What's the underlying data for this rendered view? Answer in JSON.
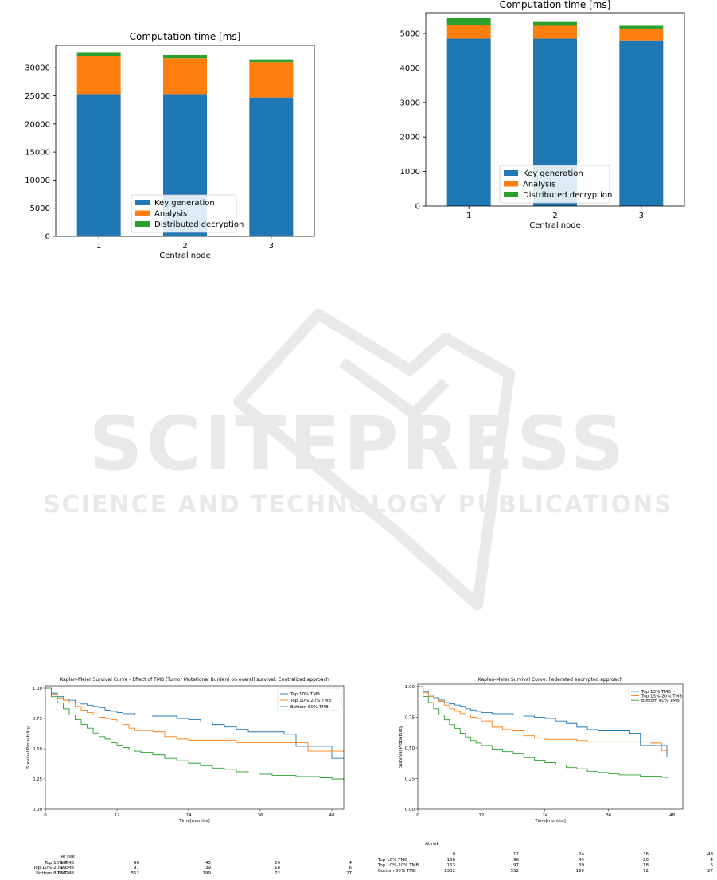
{
  "colors": {
    "key_generation": "#1f77b4",
    "analysis": "#ff7f0e",
    "distributed_decryption": "#2ca02c",
    "watermark": "#e9e9e9"
  },
  "watermark": {
    "line1": "SCITEPRESS",
    "line2": "SCIENCE AND TECHNOLOGY PUBLICATIONS"
  },
  "chart_data": [
    {
      "id": "bar-left",
      "type": "bar",
      "stacked": true,
      "title": "Computation time [ms]",
      "xlabel": "Central node",
      "ylabel": "",
      "categories": [
        "1",
        "2",
        "3"
      ],
      "ylim": [
        0,
        34000
      ],
      "yticks": [
        "0",
        "5000",
        "10000",
        "15000",
        "20000",
        "25000",
        "30000"
      ],
      "ytick_values": [
        0,
        5000,
        10000,
        15000,
        20000,
        25000,
        30000
      ],
      "legend_position": "lower-center",
      "series": [
        {
          "name": "Key generation",
          "values": [
            25300,
            25300,
            24700
          ]
        },
        {
          "name": "Analysis",
          "values": [
            6800,
            6400,
            6300
          ]
        },
        {
          "name": "Distributed decryption",
          "values": [
            700,
            600,
            500
          ]
        }
      ]
    },
    {
      "id": "bar-right",
      "type": "bar",
      "stacked": true,
      "title": "Computation time [ms]",
      "xlabel": "Central node",
      "ylabel": "",
      "categories": [
        "1",
        "2",
        "3"
      ],
      "ylim": [
        0,
        5600
      ],
      "yticks": [
        "0",
        "1000",
        "2000",
        "3000",
        "4000",
        "5000"
      ],
      "ytick_values": [
        0,
        1000,
        2000,
        3000,
        4000,
        5000
      ],
      "legend_position": "lower-center",
      "series": [
        {
          "name": "Key generation",
          "values": [
            4850,
            4850,
            4800
          ]
        },
        {
          "name": "Analysis",
          "values": [
            400,
            370,
            340
          ]
        },
        {
          "name": "Distributed decryption",
          "values": [
            200,
            110,
            80
          ]
        }
      ]
    },
    {
      "id": "km-left",
      "type": "line",
      "step": true,
      "title": "Kaplan-Meier Survival Curve - Effect of TMB (Tumor Mutational Burden) on overall survival: Centralized approach",
      "xlabel": "Time[months]",
      "ylabel": "Survival Probability",
      "xlim": [
        0,
        50
      ],
      "ylim": [
        0,
        1.02
      ],
      "xticks": [
        "0",
        "12",
        "24",
        "36",
        "48"
      ],
      "xtick_values": [
        0,
        12,
        24,
        36,
        48
      ],
      "yticks": [
        "0.00",
        "0.25",
        "0.50",
        "0.75",
        "1.00"
      ],
      "ytick_values": [
        0,
        0.25,
        0.5,
        0.75,
        1.0
      ],
      "legend_position": "top-right",
      "series": [
        {
          "name": "Top 10% TMB",
          "x": [
            0,
            1,
            2,
            3,
            4,
            5,
            6,
            7,
            8,
            9,
            10,
            11,
            12,
            13,
            14,
            15,
            16,
            18,
            20,
            22,
            24,
            26,
            28,
            30,
            32,
            34,
            36,
            38,
            40,
            42,
            44,
            46,
            48,
            50
          ],
          "y": [
            1.0,
            0.96,
            0.93,
            0.91,
            0.9,
            0.88,
            0.87,
            0.86,
            0.85,
            0.84,
            0.82,
            0.81,
            0.8,
            0.79,
            0.79,
            0.78,
            0.78,
            0.77,
            0.77,
            0.75,
            0.74,
            0.72,
            0.7,
            0.68,
            0.66,
            0.64,
            0.64,
            0.64,
            0.62,
            0.52,
            0.52,
            0.52,
            0.42,
            0.42
          ]
        },
        {
          "name": "Top 10%-20% TMB",
          "x": [
            0,
            1,
            2,
            3,
            4,
            5,
            6,
            7,
            8,
            9,
            10,
            11,
            12,
            13,
            14,
            15,
            16,
            18,
            20,
            22,
            24,
            26,
            28,
            30,
            32,
            34,
            36,
            38,
            40,
            42,
            44,
            46,
            48,
            50
          ],
          "y": [
            1.0,
            0.95,
            0.92,
            0.9,
            0.88,
            0.85,
            0.82,
            0.8,
            0.78,
            0.76,
            0.75,
            0.74,
            0.72,
            0.7,
            0.67,
            0.65,
            0.65,
            0.64,
            0.6,
            0.58,
            0.57,
            0.57,
            0.57,
            0.57,
            0.55,
            0.55,
            0.55,
            0.55,
            0.55,
            0.55,
            0.48,
            0.48,
            0.48,
            0.48
          ]
        },
        {
          "name": "Bottom 80% TMB",
          "x": [
            0,
            1,
            2,
            3,
            4,
            5,
            6,
            7,
            8,
            9,
            10,
            11,
            12,
            13,
            14,
            15,
            16,
            18,
            20,
            22,
            24,
            26,
            28,
            30,
            32,
            34,
            36,
            38,
            40,
            42,
            44,
            46,
            48,
            50
          ],
          "y": [
            1.0,
            0.93,
            0.88,
            0.83,
            0.78,
            0.74,
            0.7,
            0.67,
            0.63,
            0.6,
            0.58,
            0.55,
            0.53,
            0.51,
            0.49,
            0.48,
            0.47,
            0.45,
            0.42,
            0.4,
            0.38,
            0.36,
            0.34,
            0.33,
            0.31,
            0.3,
            0.29,
            0.28,
            0.28,
            0.27,
            0.27,
            0.26,
            0.25,
            0.24
          ]
        }
      ]
    },
    {
      "id": "km-right",
      "type": "line",
      "step": true,
      "title": "Kaplan-Meier Survival Curve: Federated encrypted approach",
      "xlabel": "Time[months]",
      "ylabel": "Survival Probability",
      "xlim": [
        0,
        50
      ],
      "ylim": [
        0,
        1.02
      ],
      "xticks": [
        "0",
        "12",
        "24",
        "36",
        "48"
      ],
      "xtick_values": [
        0,
        12,
        24,
        36,
        48
      ],
      "yticks": [
        "0.00",
        "0.25",
        "0.50",
        "0.75",
        "1.00"
      ],
      "ytick_values": [
        0,
        0.25,
        0.5,
        0.75,
        1.0
      ],
      "legend_position": "top-right",
      "series": [
        {
          "name": "Top 13% TMB",
          "x": [
            0,
            1,
            2,
            3,
            4,
            5,
            6,
            7,
            8,
            9,
            10,
            11,
            12,
            14,
            16,
            18,
            20,
            22,
            24,
            26,
            28,
            30,
            32,
            34,
            36,
            38,
            40,
            42,
            44,
            46,
            47
          ],
          "y": [
            1.0,
            0.96,
            0.93,
            0.91,
            0.89,
            0.87,
            0.86,
            0.85,
            0.84,
            0.82,
            0.81,
            0.8,
            0.79,
            0.78,
            0.78,
            0.77,
            0.76,
            0.75,
            0.74,
            0.72,
            0.7,
            0.67,
            0.65,
            0.64,
            0.64,
            0.64,
            0.62,
            0.52,
            0.52,
            0.52,
            0.42
          ]
        },
        {
          "name": "Top 13%-20% TMB",
          "x": [
            0,
            1,
            2,
            3,
            4,
            5,
            6,
            7,
            8,
            9,
            10,
            11,
            12,
            14,
            16,
            18,
            20,
            22,
            24,
            26,
            28,
            30,
            32,
            34,
            36,
            38,
            40,
            42,
            44,
            46,
            47
          ],
          "y": [
            1.0,
            0.95,
            0.92,
            0.9,
            0.88,
            0.85,
            0.82,
            0.8,
            0.78,
            0.77,
            0.75,
            0.74,
            0.72,
            0.67,
            0.65,
            0.64,
            0.6,
            0.58,
            0.57,
            0.57,
            0.57,
            0.56,
            0.55,
            0.55,
            0.55,
            0.55,
            0.55,
            0.55,
            0.54,
            0.48,
            0.48
          ]
        },
        {
          "name": "Bottom 80% TMB",
          "x": [
            0,
            1,
            2,
            3,
            4,
            5,
            6,
            7,
            8,
            9,
            10,
            11,
            12,
            14,
            16,
            18,
            20,
            22,
            24,
            26,
            28,
            30,
            32,
            34,
            36,
            38,
            40,
            42,
            44,
            46,
            47
          ],
          "y": [
            1.0,
            0.92,
            0.87,
            0.82,
            0.77,
            0.73,
            0.69,
            0.66,
            0.62,
            0.59,
            0.56,
            0.54,
            0.52,
            0.49,
            0.47,
            0.45,
            0.42,
            0.4,
            0.38,
            0.36,
            0.34,
            0.33,
            0.31,
            0.3,
            0.29,
            0.28,
            0.28,
            0.27,
            0.27,
            0.26,
            0.25
          ]
        }
      ]
    }
  ],
  "risk_tables": [
    {
      "id": "risk-left",
      "heading": "At risk",
      "times": [
        "0",
        "12",
        "24",
        "36",
        "48"
      ],
      "show_times": false,
      "rows": [
        {
          "label": "Top 10% TMB",
          "values": [
            "166",
            "96",
            "45",
            "20",
            "4"
          ]
        },
        {
          "label": "Top 10%-20% TMB",
          "values": [
            "163",
            "97",
            "39",
            "18",
            "6"
          ]
        },
        {
          "label": "Bottom 80% TMB",
          "values": [
            "1302",
            "552",
            "199",
            "72",
            "27"
          ]
        }
      ]
    },
    {
      "id": "risk-right",
      "heading": "At risk",
      "times": [
        "0",
        "12",
        "24",
        "36",
        "48"
      ],
      "show_times": true,
      "rows": [
        {
          "label": "Top 10% TMB",
          "values": [
            "166",
            "96",
            "45",
            "20",
            "4"
          ]
        },
        {
          "label": "Top 10%-20% TMB",
          "values": [
            "163",
            "97",
            "39",
            "18",
            "6"
          ]
        },
        {
          "label": "Bottom 80% TMB",
          "values": [
            "1302",
            "552",
            "199",
            "72",
            "27"
          ]
        }
      ]
    }
  ]
}
